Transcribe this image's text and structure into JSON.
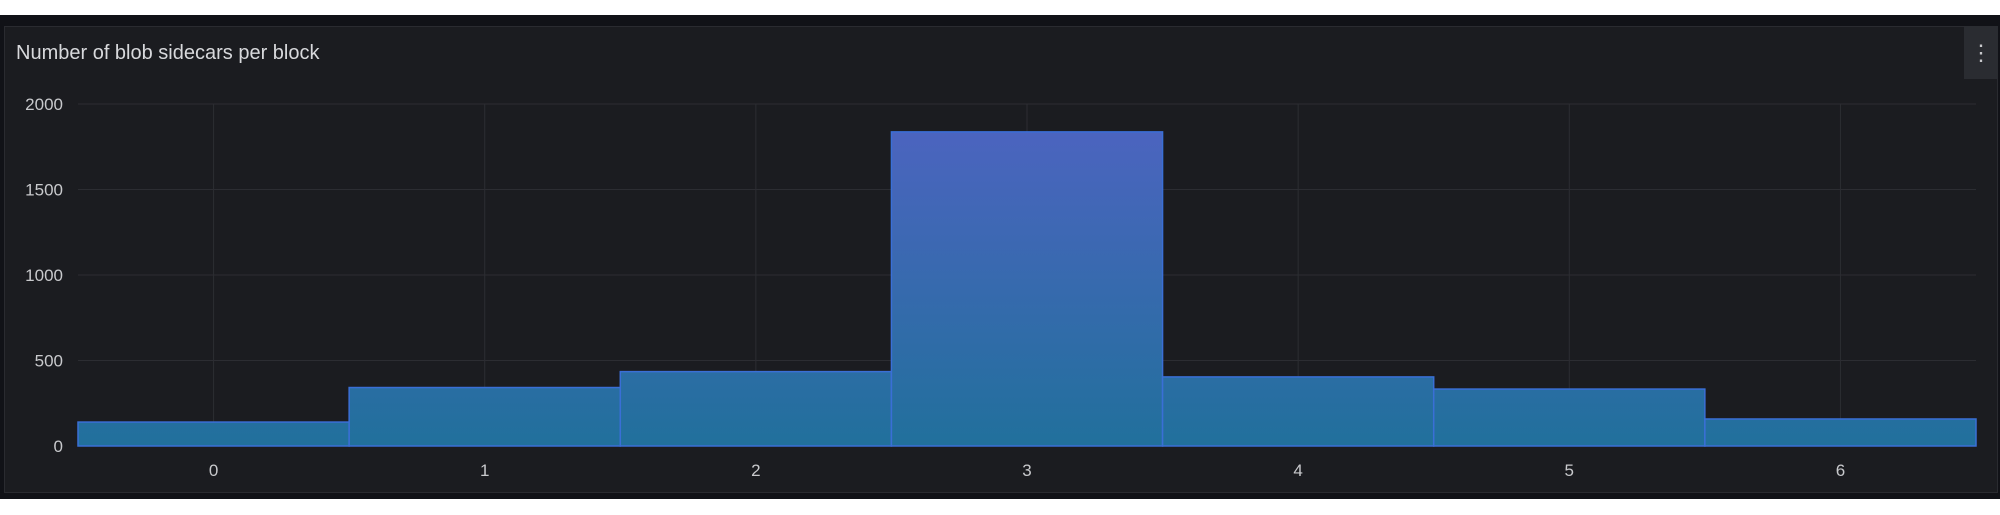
{
  "panel": {
    "title": "Number of blob sidecars per block",
    "menu_icon": "kebab-menu-icon"
  },
  "colors": {
    "bar_top": "#4f63c2",
    "bar_bottom": "#21709c",
    "bar_edge": "#3a6fd6",
    "background": "#1b1c20"
  },
  "chart_data": {
    "type": "bar",
    "title": "Number of blob sidecars per block",
    "categories": [
      "0",
      "1",
      "2",
      "3",
      "4",
      "5",
      "6"
    ],
    "values": [
      140,
      342,
      435,
      1837,
      404,
      333,
      158
    ],
    "xlabel": "",
    "ylabel": "",
    "ylim": [
      0,
      2000
    ],
    "yticks": [
      "0",
      "500",
      "1000",
      "1500",
      "2000"
    ],
    "grid": true,
    "legend": "none"
  }
}
